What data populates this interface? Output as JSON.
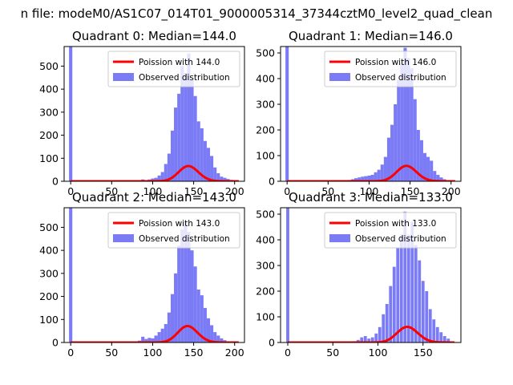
{
  "figure_title": "n file: modeM0/AS1C07_014T01_9000005314_37344cztM0_level2_quad_clean",
  "colors": {
    "bars": "#7b7bf6",
    "poisson": "#ff0000",
    "axis": "#000000",
    "background": "#ffffff"
  },
  "chart_data": [
    {
      "type": "bar",
      "title": "Quadrant 0: Median=144.0",
      "median": 144.0,
      "xlabel": "",
      "ylabel": "",
      "xlim": [
        -8,
        212
      ],
      "ylim": [
        0,
        585
      ],
      "xticks": [
        0,
        50,
        100,
        150,
        200
      ],
      "yticks": [
        0,
        100,
        200,
        300,
        400,
        500
      ],
      "grid": false,
      "legend_position": "top-right",
      "legend": [
        "Poission with 144.0",
        "Observed distribution"
      ],
      "bin_width": 4,
      "bins": [
        [
          0,
          585
        ],
        [
          88,
          8
        ],
        [
          92,
          5
        ],
        [
          96,
          8
        ],
        [
          100,
          12
        ],
        [
          104,
          15
        ],
        [
          108,
          25
        ],
        [
          112,
          40
        ],
        [
          116,
          75
        ],
        [
          120,
          120
        ],
        [
          124,
          220
        ],
        [
          128,
          320
        ],
        [
          132,
          380
        ],
        [
          136,
          500
        ],
        [
          140,
          470
        ],
        [
          144,
          555
        ],
        [
          148,
          440
        ],
        [
          152,
          370
        ],
        [
          156,
          260
        ],
        [
          160,
          230
        ],
        [
          164,
          175
        ],
        [
          168,
          145
        ],
        [
          172,
          110
        ],
        [
          176,
          60
        ],
        [
          180,
          35
        ],
        [
          184,
          20
        ],
        [
          188,
          15
        ],
        [
          192,
          10
        ],
        [
          196,
          6
        ],
        [
          200,
          3
        ]
      ],
      "poisson": {
        "lambda": 144.0,
        "scale": 1990,
        "x_range": [
          0,
          205
        ]
      }
    },
    {
      "type": "bar",
      "title": "Quadrant 1: Median=146.0",
      "median": 146.0,
      "xlabel": "",
      "ylabel": "",
      "xlim": [
        -8,
        212
      ],
      "ylim": [
        0,
        525
      ],
      "xticks": [
        0,
        50,
        100,
        150,
        200
      ],
      "yticks": [
        0,
        100,
        200,
        300,
        400,
        500
      ],
      "grid": false,
      "legend_position": "top-right",
      "legend": [
        "Poission with 146.0",
        "Observed distribution"
      ],
      "bin_width": 4,
      "bins": [
        [
          0,
          525
        ],
        [
          76,
          5
        ],
        [
          80,
          8
        ],
        [
          84,
          12
        ],
        [
          88,
          15
        ],
        [
          92,
          18
        ],
        [
          96,
          20
        ],
        [
          100,
          22
        ],
        [
          104,
          25
        ],
        [
          108,
          35
        ],
        [
          112,
          45
        ],
        [
          116,
          65
        ],
        [
          120,
          95
        ],
        [
          124,
          170
        ],
        [
          128,
          220
        ],
        [
          132,
          300
        ],
        [
          136,
          395
        ],
        [
          140,
          460
        ],
        [
          144,
          520
        ],
        [
          148,
          480
        ],
        [
          152,
          440
        ],
        [
          156,
          320
        ],
        [
          160,
          200
        ],
        [
          164,
          160
        ],
        [
          168,
          110
        ],
        [
          172,
          95
        ],
        [
          176,
          80
        ],
        [
          180,
          40
        ],
        [
          184,
          25
        ],
        [
          188,
          15
        ],
        [
          192,
          8
        ],
        [
          196,
          4
        ]
      ],
      "poisson": {
        "lambda": 146.0,
        "scale": 1820,
        "x_range": [
          0,
          205
        ]
      }
    },
    {
      "type": "bar",
      "title": "Quadrant 2: Median=143.0",
      "median": 143.0,
      "xlabel": "",
      "ylabel": "",
      "xlim": [
        -8,
        212
      ],
      "ylim": [
        0,
        585
      ],
      "xticks": [
        0,
        50,
        100,
        150,
        200
      ],
      "yticks": [
        0,
        100,
        200,
        300,
        400,
        500
      ],
      "grid": false,
      "legend_position": "top-right",
      "legend": [
        "Poission with 143.0",
        "Observed distribution"
      ],
      "bin_width": 4,
      "bins": [
        [
          0,
          585
        ],
        [
          84,
          8
        ],
        [
          88,
          25
        ],
        [
          92,
          15
        ],
        [
          96,
          20
        ],
        [
          100,
          18
        ],
        [
          104,
          30
        ],
        [
          108,
          45
        ],
        [
          112,
          60
        ],
        [
          116,
          80
        ],
        [
          120,
          130
        ],
        [
          124,
          210
        ],
        [
          128,
          300
        ],
        [
          132,
          420
        ],
        [
          136,
          490
        ],
        [
          140,
          520
        ],
        [
          144,
          480
        ],
        [
          148,
          400
        ],
        [
          152,
          330
        ],
        [
          156,
          230
        ],
        [
          160,
          205
        ],
        [
          164,
          150
        ],
        [
          168,
          105
        ],
        [
          172,
          75
        ],
        [
          176,
          45
        ],
        [
          180,
          30
        ],
        [
          184,
          18
        ],
        [
          188,
          10
        ],
        [
          192,
          5
        ]
      ],
      "poisson": {
        "lambda": 143.0,
        "scale": 2140,
        "x_range": [
          0,
          205
        ]
      }
    },
    {
      "type": "bar",
      "title": "Quadrant 3: Median=133.0",
      "median": 133.0,
      "xlabel": "",
      "ylabel": "",
      "xlim": [
        -8,
        192
      ],
      "ylim": [
        0,
        525
      ],
      "xticks": [
        0,
        50,
        100,
        150
      ],
      "yticks": [
        0,
        100,
        200,
        300,
        400,
        500
      ],
      "grid": false,
      "legend_position": "top-right",
      "legend": [
        "Poission with 133.0",
        "Observed distribution"
      ],
      "bin_width": 3.4,
      "bins": [
        [
          0,
          525
        ],
        [
          74,
          5
        ],
        [
          78,
          10
        ],
        [
          82,
          20
        ],
        [
          86,
          25
        ],
        [
          90,
          15
        ],
        [
          94,
          20
        ],
        [
          98,
          35
        ],
        [
          102,
          60
        ],
        [
          106,
          110
        ],
        [
          110,
          150
        ],
        [
          114,
          220
        ],
        [
          118,
          295
        ],
        [
          122,
          370
        ],
        [
          126,
          420
        ],
        [
          130,
          510
        ],
        [
          134,
          420
        ],
        [
          138,
          470
        ],
        [
          142,
          380
        ],
        [
          146,
          320
        ],
        [
          150,
          240
        ],
        [
          154,
          200
        ],
        [
          158,
          130
        ],
        [
          162,
          90
        ],
        [
          166,
          60
        ],
        [
          170,
          40
        ],
        [
          174,
          25
        ],
        [
          178,
          15
        ]
      ],
      "poisson": {
        "lambda": 133.0,
        "scale": 1760,
        "x_range": [
          0,
          185
        ]
      }
    }
  ]
}
